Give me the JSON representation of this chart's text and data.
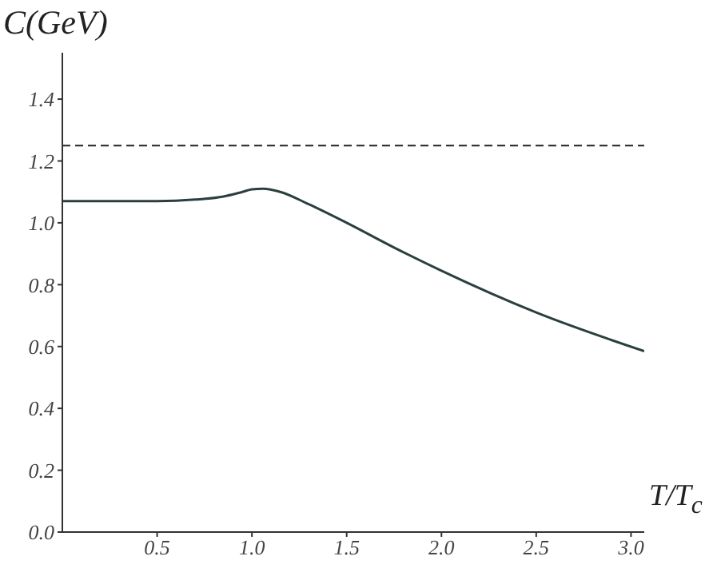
{
  "chart_data": {
    "type": "line",
    "xlabel": "T/T$_{c}$",
    "ylabel": "C(GeV)",
    "x": [
      0,
      0.5,
      0.7,
      0.85,
      0.95,
      1.0,
      1.06,
      1.15,
      1.3,
      1.5,
      1.75,
      2.0,
      2.5,
      3.07
    ],
    "series": [
      {
        "color": "#2b3f3f",
        "values": [
          1.07,
          1.07,
          1.075,
          1.085,
          1.1,
          1.108,
          1.11,
          1.1,
          1.06,
          1.0,
          0.92,
          0.845,
          0.71,
          0.585
        ]
      }
    ],
    "xlim": [
      0,
      3.07
    ],
    "xticks": [
      0.5,
      {
        "value": 1,
        "label": "1.0"
      },
      1.5,
      {
        "value": 2,
        "label": "2.0"
      },
      2.5,
      {
        "value": 3,
        "label": "3.0"
      }
    ],
    "ylim": [
      0,
      1.55
    ],
    "yticks": [
      {
        "value": 0,
        "label": "0.0"
      },
      0.2,
      0.4,
      0.6,
      0.8,
      {
        "value": 1,
        "label": "1.0"
      },
      1.2,
      1.4
    ],
    "ref_lines": [
      {
        "axis": "y",
        "value": 1.25,
        "line_style": "dashed",
        "color": "#222222"
      }
    ],
    "grid": false,
    "legend": false,
    "marker": "none",
    "line_style": "solid"
  }
}
